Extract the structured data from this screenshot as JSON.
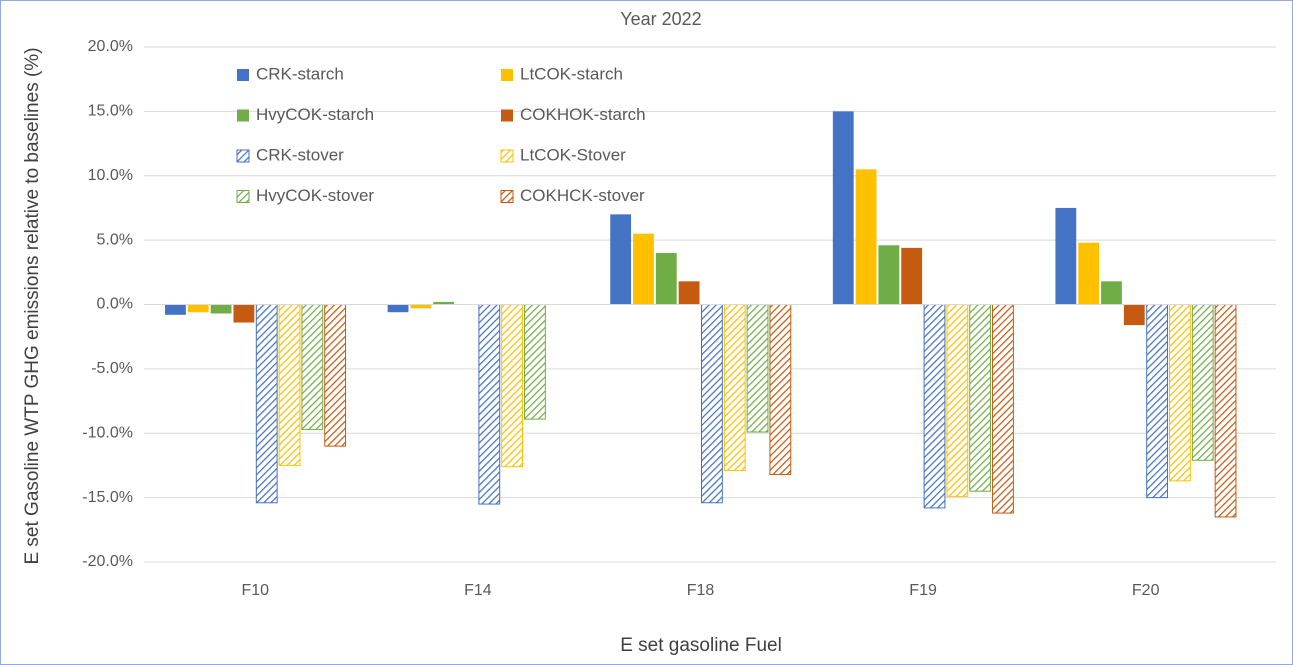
{
  "chart_data": {
    "type": "bar",
    "title": "Year 2022",
    "x_label": "E set gasoline Fuel",
    "y_label": "E set Gasoline WTP GHG emissions relative to baselines (%)",
    "categories": [
      "F10",
      "F14",
      "F18",
      "F19",
      "F20"
    ],
    "series": [
      {
        "name": "CRK-starch",
        "color": "#4472c4",
        "pattern": "solid",
        "values": [
          -0.8,
          -0.6,
          7.0,
          15.0,
          7.5
        ]
      },
      {
        "name": "LtCOK-starch",
        "color": "#ffc000",
        "pattern": "solid",
        "values": [
          -0.6,
          -0.3,
          5.5,
          10.5,
          4.8
        ]
      },
      {
        "name": "HvyCOK-starch",
        "color": "#70ad47",
        "pattern": "solid",
        "values": [
          -0.7,
          0.2,
          4.0,
          4.6,
          1.8
        ]
      },
      {
        "name": "COKHOK-starch",
        "color": "#c55a11",
        "pattern": "solid",
        "values": [
          -1.4,
          null,
          1.8,
          4.4,
          -1.6
        ]
      },
      {
        "name": "CRK-stover",
        "color": "#4472c4",
        "pattern": "hatched",
        "values": [
          -15.4,
          -15.5,
          -15.4,
          -15.8,
          -15.0
        ]
      },
      {
        "name": "LtCOK-Stover",
        "color": "#ffc000",
        "pattern": "hatched",
        "values": [
          -12.5,
          -12.6,
          -12.9,
          -14.9,
          -13.7
        ]
      },
      {
        "name": "HvyCOK-stover",
        "color": "#70ad47",
        "pattern": "hatched",
        "values": [
          -9.7,
          -8.9,
          -9.9,
          -14.5,
          -12.1
        ]
      },
      {
        "name": "COKHCK-stover",
        "color": "#c55a11",
        "pattern": "hatched",
        "values": [
          -11.0,
          null,
          -13.2,
          -16.2,
          -16.5
        ]
      }
    ],
    "ylim": [
      -20,
      20
    ],
    "yticks": [
      {
        "value": -20,
        "label": "-20.0%"
      },
      {
        "value": -15,
        "label": "-15.0%"
      },
      {
        "value": -10,
        "label": "-10.0%"
      },
      {
        "value": -5,
        "label": "-5.0%"
      },
      {
        "value": 0,
        "label": "0.0%"
      },
      {
        "value": 5,
        "label": "5.0%"
      },
      {
        "value": 10,
        "label": "10.0%"
      },
      {
        "value": 15,
        "label": "15.0%"
      },
      {
        "value": 20,
        "label": "20.0%"
      }
    ],
    "grid": true,
    "legend": "upper left"
  }
}
